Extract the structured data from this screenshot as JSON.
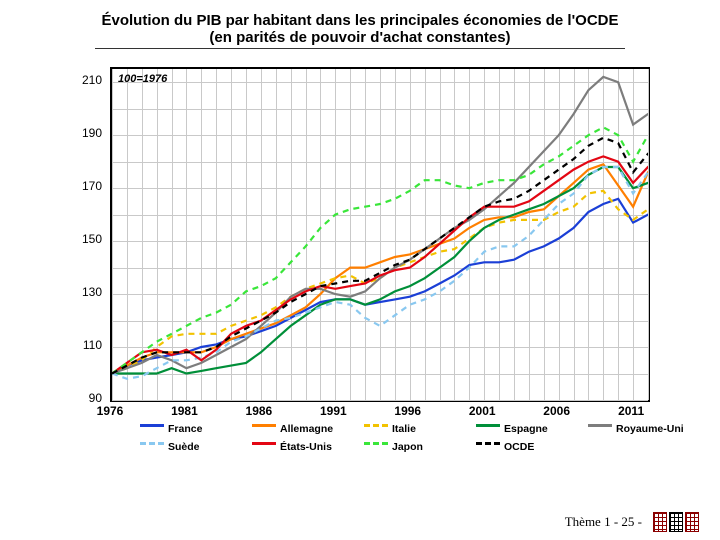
{
  "title_line1": "Évolution du PIB par habitant dans les principales économies de l'OCDE",
  "title_line2": "(en parités de pouvoir d'achat constantes)",
  "index_note": "100=1976",
  "footer_text": "Thème 1 - 25 -",
  "chart": {
    "type": "line",
    "x_label_years": [
      1976,
      1981,
      1986,
      1991,
      1996,
      2001,
      2006,
      2011
    ],
    "x_minor_step": 1,
    "x_min": 1976,
    "x_max": 2012,
    "y_ticks": [
      90,
      110,
      130,
      150,
      170,
      190,
      210
    ],
    "y_minor_step": 10,
    "y_min": 90,
    "y_max": 215,
    "grid_color": "#c9c9c9",
    "background": "#ffffff",
    "axis_color": "#000000",
    "line_width": 2.2,
    "series": [
      {
        "name": "France",
        "color": "#1b3fd6",
        "dash": "solid",
        "values": [
          100,
          103,
          105,
          106,
          107,
          108,
          110,
          111,
          113,
          114,
          116,
          118,
          121,
          124,
          127,
          128,
          128,
          126,
          127,
          128,
          129,
          131,
          134,
          137,
          141,
          142,
          142,
          143,
          146,
          148,
          151,
          155,
          161,
          164,
          166,
          157,
          160,
          162
        ]
      },
      {
        "name": "Allemagne",
        "color": "#ff7f00",
        "dash": "solid",
        "values": [
          100,
          103,
          106,
          108,
          108,
          108,
          108,
          110,
          113,
          115,
          117,
          119,
          122,
          125,
          130,
          136,
          140,
          140,
          142,
          144,
          145,
          147,
          149,
          151,
          155,
          158,
          159,
          159,
          161,
          162,
          167,
          172,
          177,
          179,
          171,
          163,
          176,
          178
        ]
      },
      {
        "name": "Italie",
        "color": "#f2c200",
        "dash": "dash",
        "values": [
          100,
          102,
          105,
          110,
          114,
          115,
          115,
          115,
          118,
          120,
          122,
          125,
          129,
          132,
          134,
          136,
          137,
          134,
          136,
          140,
          142,
          144,
          146,
          147,
          151,
          155,
          157,
          158,
          158,
          158,
          161,
          163,
          168,
          169,
          162,
          158,
          162,
          160
        ]
      },
      {
        "name": "Espagne",
        "color": "#008f39",
        "dash": "solid",
        "values": [
          100,
          100,
          100,
          100,
          102,
          100,
          101,
          102,
          103,
          104,
          108,
          113,
          118,
          122,
          126,
          128,
          128,
          126,
          128,
          131,
          133,
          136,
          140,
          144,
          150,
          155,
          158,
          160,
          162,
          164,
          167,
          170,
          175,
          178,
          178,
          170,
          172,
          172
        ]
      },
      {
        "name": "Royaume-Uni",
        "color": "#7d7d7d",
        "dash": "solid",
        "values": [
          100,
          102,
          104,
          107,
          105,
          102,
          104,
          107,
          110,
          113,
          118,
          123,
          129,
          132,
          132,
          130,
          129,
          131,
          136,
          140,
          143,
          147,
          151,
          155,
          158,
          162,
          167,
          172,
          178,
          184,
          190,
          198,
          207,
          212,
          210,
          194,
          198,
          199
        ]
      },
      {
        "name": "Suède",
        "color": "#89c8f0",
        "dash": "dash",
        "values": [
          100,
          98,
          99,
          102,
          105,
          105,
          106,
          108,
          112,
          114,
          117,
          120,
          121,
          123,
          125,
          127,
          126,
          121,
          118,
          122,
          126,
          128,
          131,
          135,
          140,
          146,
          148,
          148,
          152,
          158,
          164,
          168,
          175,
          178,
          178,
          168,
          176,
          178
        ]
      },
      {
        "name": "États-Unis",
        "color": "#e30613",
        "dash": "solid",
        "values": [
          100,
          104,
          108,
          109,
          107,
          109,
          105,
          109,
          115,
          118,
          120,
          124,
          128,
          131,
          133,
          132,
          133,
          134,
          137,
          139,
          140,
          144,
          149,
          154,
          159,
          163,
          163,
          163,
          165,
          169,
          173,
          177,
          180,
          182,
          180,
          172,
          178,
          182
        ]
      },
      {
        "name": "Japon",
        "color": "#39e639",
        "dash": "dash",
        "values": [
          100,
          104,
          108,
          112,
          115,
          118,
          121,
          123,
          126,
          131,
          133,
          136,
          142,
          148,
          155,
          160,
          162,
          163,
          164,
          166,
          169,
          173,
          173,
          171,
          170,
          172,
          173,
          173,
          175,
          179,
          182,
          186,
          190,
          193,
          190,
          180,
          190,
          190
        ]
      },
      {
        "name": "OCDE",
        "color": "#000000",
        "dash": "dash",
        "values": [
          100,
          103,
          106,
          108,
          108,
          108,
          108,
          110,
          114,
          117,
          120,
          123,
          127,
          130,
          133,
          134,
          135,
          135,
          138,
          141,
          143,
          147,
          151,
          155,
          159,
          163,
          165,
          166,
          169,
          173,
          177,
          181,
          186,
          189,
          187,
          176,
          183,
          186
        ]
      }
    ],
    "legend_rows": [
      [
        "France",
        "Allemagne",
        "Italie",
        "Espagne",
        "Royaume-Uni"
      ],
      [
        "Suède",
        "États-Unis",
        "Japon",
        "OCDE"
      ]
    ]
  },
  "fonts": {
    "title_size": 15,
    "axis_size": 12,
    "legend_size": 10.5
  }
}
